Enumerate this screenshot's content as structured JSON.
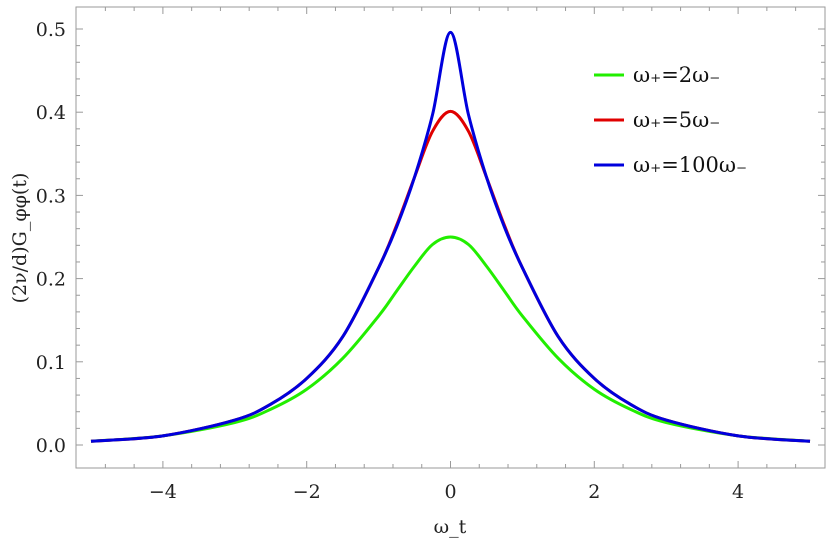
{
  "chart_data": {
    "type": "line",
    "title": "",
    "xlabel": "ω_t",
    "ylabel": "(2ν/d)G_φφ(t)",
    "xlim": [
      -5,
      5
    ],
    "ylim": [
      0,
      0.52
    ],
    "x_ticks": [
      {
        "value": -4,
        "label": "−4"
      },
      {
        "value": -2,
        "label": "−2"
      },
      {
        "value": 0,
        "label": "0"
      },
      {
        "value": 2,
        "label": "2"
      },
      {
        "value": 4,
        "label": "4"
      }
    ],
    "y_ticks": [
      {
        "value": 0.0,
        "label": "0.0"
      },
      {
        "value": 0.1,
        "label": "0.1"
      },
      {
        "value": 0.2,
        "label": "0.2"
      },
      {
        "value": 0.3,
        "label": "0.3"
      },
      {
        "value": 0.4,
        "label": "0.4"
      },
      {
        "value": 0.5,
        "label": "0.5"
      }
    ],
    "grid": false,
    "legend_position": "top-right",
    "series": [
      {
        "name": "ω₊=2ω₋",
        "color": "#22ee00",
        "x": [
          -5,
          -4,
          -3,
          -2.5,
          -2,
          -1.5,
          -1,
          -0.75,
          -0.5,
          -0.25,
          0,
          0.25,
          0.5,
          0.75,
          1,
          1.5,
          2,
          2.5,
          3,
          4,
          5
        ],
        "y": [
          0.0045,
          0.011,
          0.027,
          0.043,
          0.067,
          0.104,
          0.155,
          0.185,
          0.215,
          0.241,
          0.25,
          0.241,
          0.215,
          0.185,
          0.155,
          0.104,
          0.067,
          0.043,
          0.027,
          0.011,
          0.0045
        ]
      },
      {
        "name": "ω₊=5ω₋",
        "color": "#e00000",
        "x": [
          -5,
          -4,
          -3,
          -2.5,
          -2,
          -1.5,
          -1,
          -0.75,
          -0.5,
          -0.25,
          0,
          0.25,
          0.5,
          0.75,
          1,
          1.5,
          2,
          2.5,
          3,
          4,
          5
        ],
        "y": [
          0.0045,
          0.011,
          0.03,
          0.049,
          0.08,
          0.13,
          0.213,
          0.264,
          0.322,
          0.377,
          0.401,
          0.377,
          0.322,
          0.264,
          0.213,
          0.13,
          0.08,
          0.049,
          0.03,
          0.011,
          0.0045
        ]
      },
      {
        "name": "ω₊=100ω₋",
        "color": "#0000dd",
        "x": [
          -5,
          -4,
          -3,
          -2.5,
          -2,
          -1.5,
          -1,
          -0.75,
          -0.5,
          -0.25,
          0,
          0.25,
          0.5,
          0.75,
          1,
          1.5,
          2,
          2.5,
          3,
          4,
          5
        ],
        "y": [
          0.0045,
          0.011,
          0.03,
          0.049,
          0.08,
          0.13,
          0.213,
          0.262,
          0.322,
          0.397,
          0.496,
          0.397,
          0.322,
          0.262,
          0.213,
          0.13,
          0.08,
          0.049,
          0.03,
          0.011,
          0.0045
        ]
      }
    ]
  }
}
